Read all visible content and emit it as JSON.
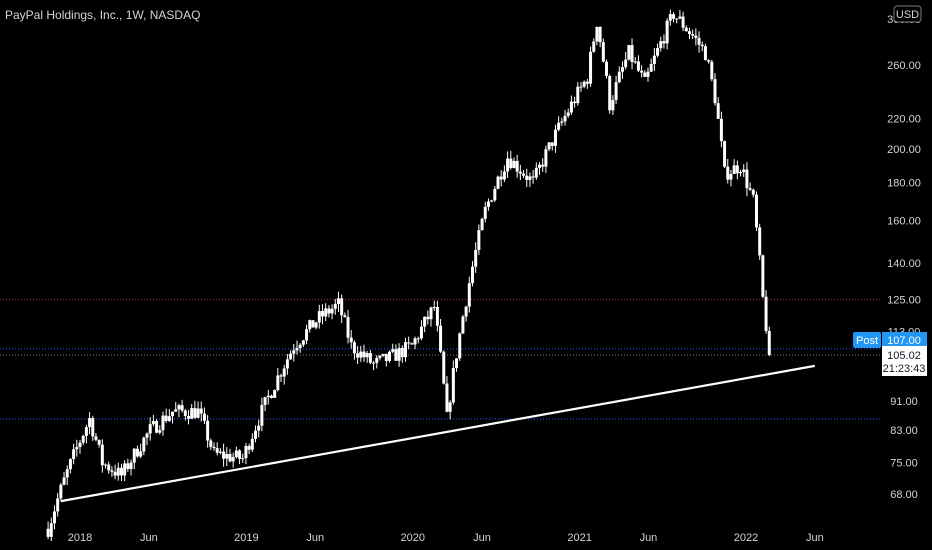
{
  "chart_data": {
    "type": "candlestick",
    "title": "PayPal Holdings, Inc., 1W, NASDAQ",
    "currency": "USD",
    "scale": "log",
    "grid": false,
    "x_ticks": [
      "2018",
      "Jun",
      "2019",
      "Jun",
      "2020",
      "Jun",
      "2021",
      "Jun",
      "2022",
      "Jun"
    ],
    "x_tick_dates": [
      "2018-01-01",
      "2018-06-01",
      "2019-01-01",
      "2019-06-01",
      "2020-01-01",
      "2020-06-01",
      "2021-01-01",
      "2021-06-01",
      "2022-01-01",
      "2022-06-01"
    ],
    "y_ticks": [
      300,
      260,
      220,
      200,
      180,
      160,
      140,
      125,
      113,
      91,
      83,
      75,
      68
    ],
    "y_tick_labels": [
      "300.00",
      "260.00",
      "220.00",
      "200.00",
      "180.00",
      "160.00",
      "140.00",
      "125.00",
      "113.00",
      "91.00",
      "83.00",
      "75.00",
      "68.00"
    ],
    "price_path": [
      [
        "2017-10-23",
        61
      ],
      [
        "2017-12-01",
        72
      ],
      [
        "2018-01-22",
        86
      ],
      [
        "2018-02-19",
        75
      ],
      [
        "2018-04-02",
        72
      ],
      [
        "2018-06-04",
        83
      ],
      [
        "2018-07-23",
        88
      ],
      [
        "2018-09-17",
        88
      ],
      [
        "2018-10-22",
        77
      ],
      [
        "2018-12-24",
        76
      ],
      [
        "2019-02-25",
        94
      ],
      [
        "2019-04-15",
        108
      ],
      [
        "2019-06-10",
        118
      ],
      [
        "2019-07-22",
        123
      ],
      [
        "2019-08-19",
        108
      ],
      [
        "2019-10-07",
        102
      ],
      [
        "2019-11-11",
        104
      ],
      [
        "2019-12-30",
        108
      ],
      [
        "2020-02-17",
        122
      ],
      [
        "2020-03-16",
        86
      ],
      [
        "2020-04-27",
        125
      ],
      [
        "2020-06-08",
        165
      ],
      [
        "2020-07-27",
        195
      ],
      [
        "2020-09-21",
        180
      ],
      [
        "2020-11-02",
        205
      ],
      [
        "2021-01-18",
        250
      ],
      [
        "2021-02-08",
        298
      ],
      [
        "2021-03-08",
        230
      ],
      [
        "2021-04-19",
        270
      ],
      [
        "2021-05-24",
        245
      ],
      [
        "2021-07-26",
        305
      ],
      [
        "2021-09-06",
        285
      ],
      [
        "2021-10-04",
        270
      ],
      [
        "2021-10-25",
        235
      ],
      [
        "2021-11-15",
        185
      ],
      [
        "2021-12-20",
        190
      ],
      [
        "2022-01-17",
        170
      ],
      [
        "2022-02-07",
        125
      ],
      [
        "2022-02-21",
        105.02
      ]
    ],
    "trendline": {
      "start": [
        "2017-11-20",
        66.5
      ],
      "end": [
        "2022-06-01",
        101.5
      ],
      "color": "#ffffff"
    },
    "horizontal_levels": [
      {
        "value": 125,
        "color": "#b3343f"
      },
      {
        "value": 107,
        "color": "#2962ff"
      },
      {
        "value": 105.02,
        "color": "#787b86"
      },
      {
        "value": 86,
        "color": "#2962ff"
      }
    ],
    "post_label": "Post",
    "post_price": "107.00",
    "last_price": "105.02",
    "countdown": "21:23:43",
    "colors": {
      "background": "#000000",
      "candle": "#ffffff",
      "post": "#2196f3"
    }
  }
}
